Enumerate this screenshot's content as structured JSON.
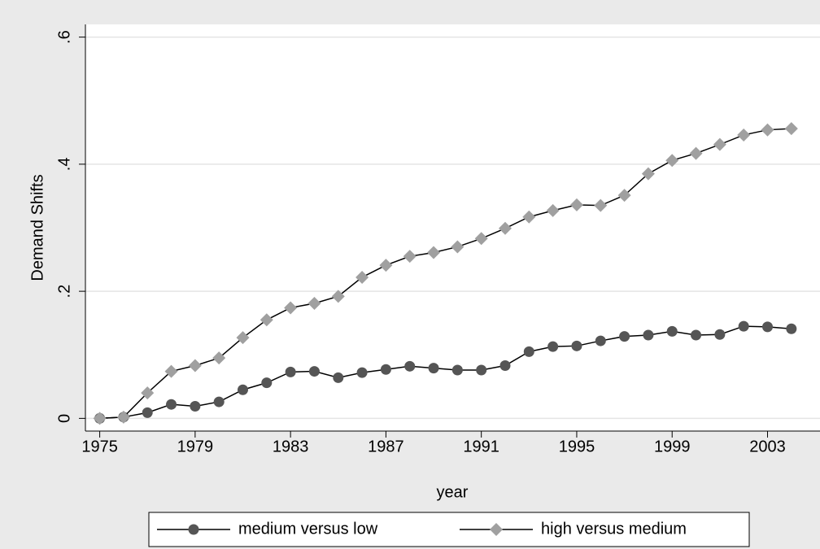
{
  "chart_data": {
    "type": "line",
    "x": [
      1975,
      1976,
      1977,
      1978,
      1979,
      1980,
      1981,
      1982,
      1983,
      1984,
      1985,
      1986,
      1987,
      1988,
      1989,
      1990,
      1991,
      1992,
      1993,
      1994,
      1995,
      1996,
      1997,
      1998,
      1999,
      2000,
      2001,
      2002,
      2003,
      2004
    ],
    "series": [
      {
        "name": "medium versus low",
        "color": "#555555",
        "marker": "circle",
        "values": [
          0,
          0.002,
          0.009,
          0.022,
          0.019,
          0.026,
          0.045,
          0.056,
          0.073,
          0.074,
          0.064,
          0.072,
          0.077,
          0.082,
          0.079,
          0.076,
          0.076,
          0.083,
          0.105,
          0.113,
          0.114,
          0.122,
          0.129,
          0.131,
          0.137,
          0.131,
          0.132,
          0.145,
          0.144,
          0.141
        ]
      },
      {
        "name": "high versus medium",
        "color": "#a0a0a0",
        "marker": "diamond",
        "values": [
          0,
          0.002,
          0.04,
          0.074,
          0.083,
          0.095,
          0.127,
          0.155,
          0.174,
          0.181,
          0.192,
          0.222,
          0.241,
          0.255,
          0.261,
          0.27,
          0.283,
          0.299,
          0.317,
          0.327,
          0.336,
          0.335,
          0.351,
          0.385,
          0.406,
          0.417,
          0.431,
          0.446,
          0.454,
          0.456
        ]
      }
    ],
    "xlabel": "year",
    "ylabel": "Demand Shifts",
    "xlim": [
      1974.4,
      2005.2
    ],
    "ylim": [
      -0.02,
      0.62
    ],
    "xticks": [
      1975,
      1979,
      1983,
      1987,
      1991,
      1995,
      1999,
      2003
    ],
    "yticks": [
      0,
      {
        "value": 0.2,
        "label": ".2"
      },
      {
        "value": 0.4,
        "label": ".4"
      },
      {
        "value": 0.6,
        "label": ".6"
      }
    ],
    "grid": true,
    "line_color": "#000000",
    "legend": "bottom"
  }
}
